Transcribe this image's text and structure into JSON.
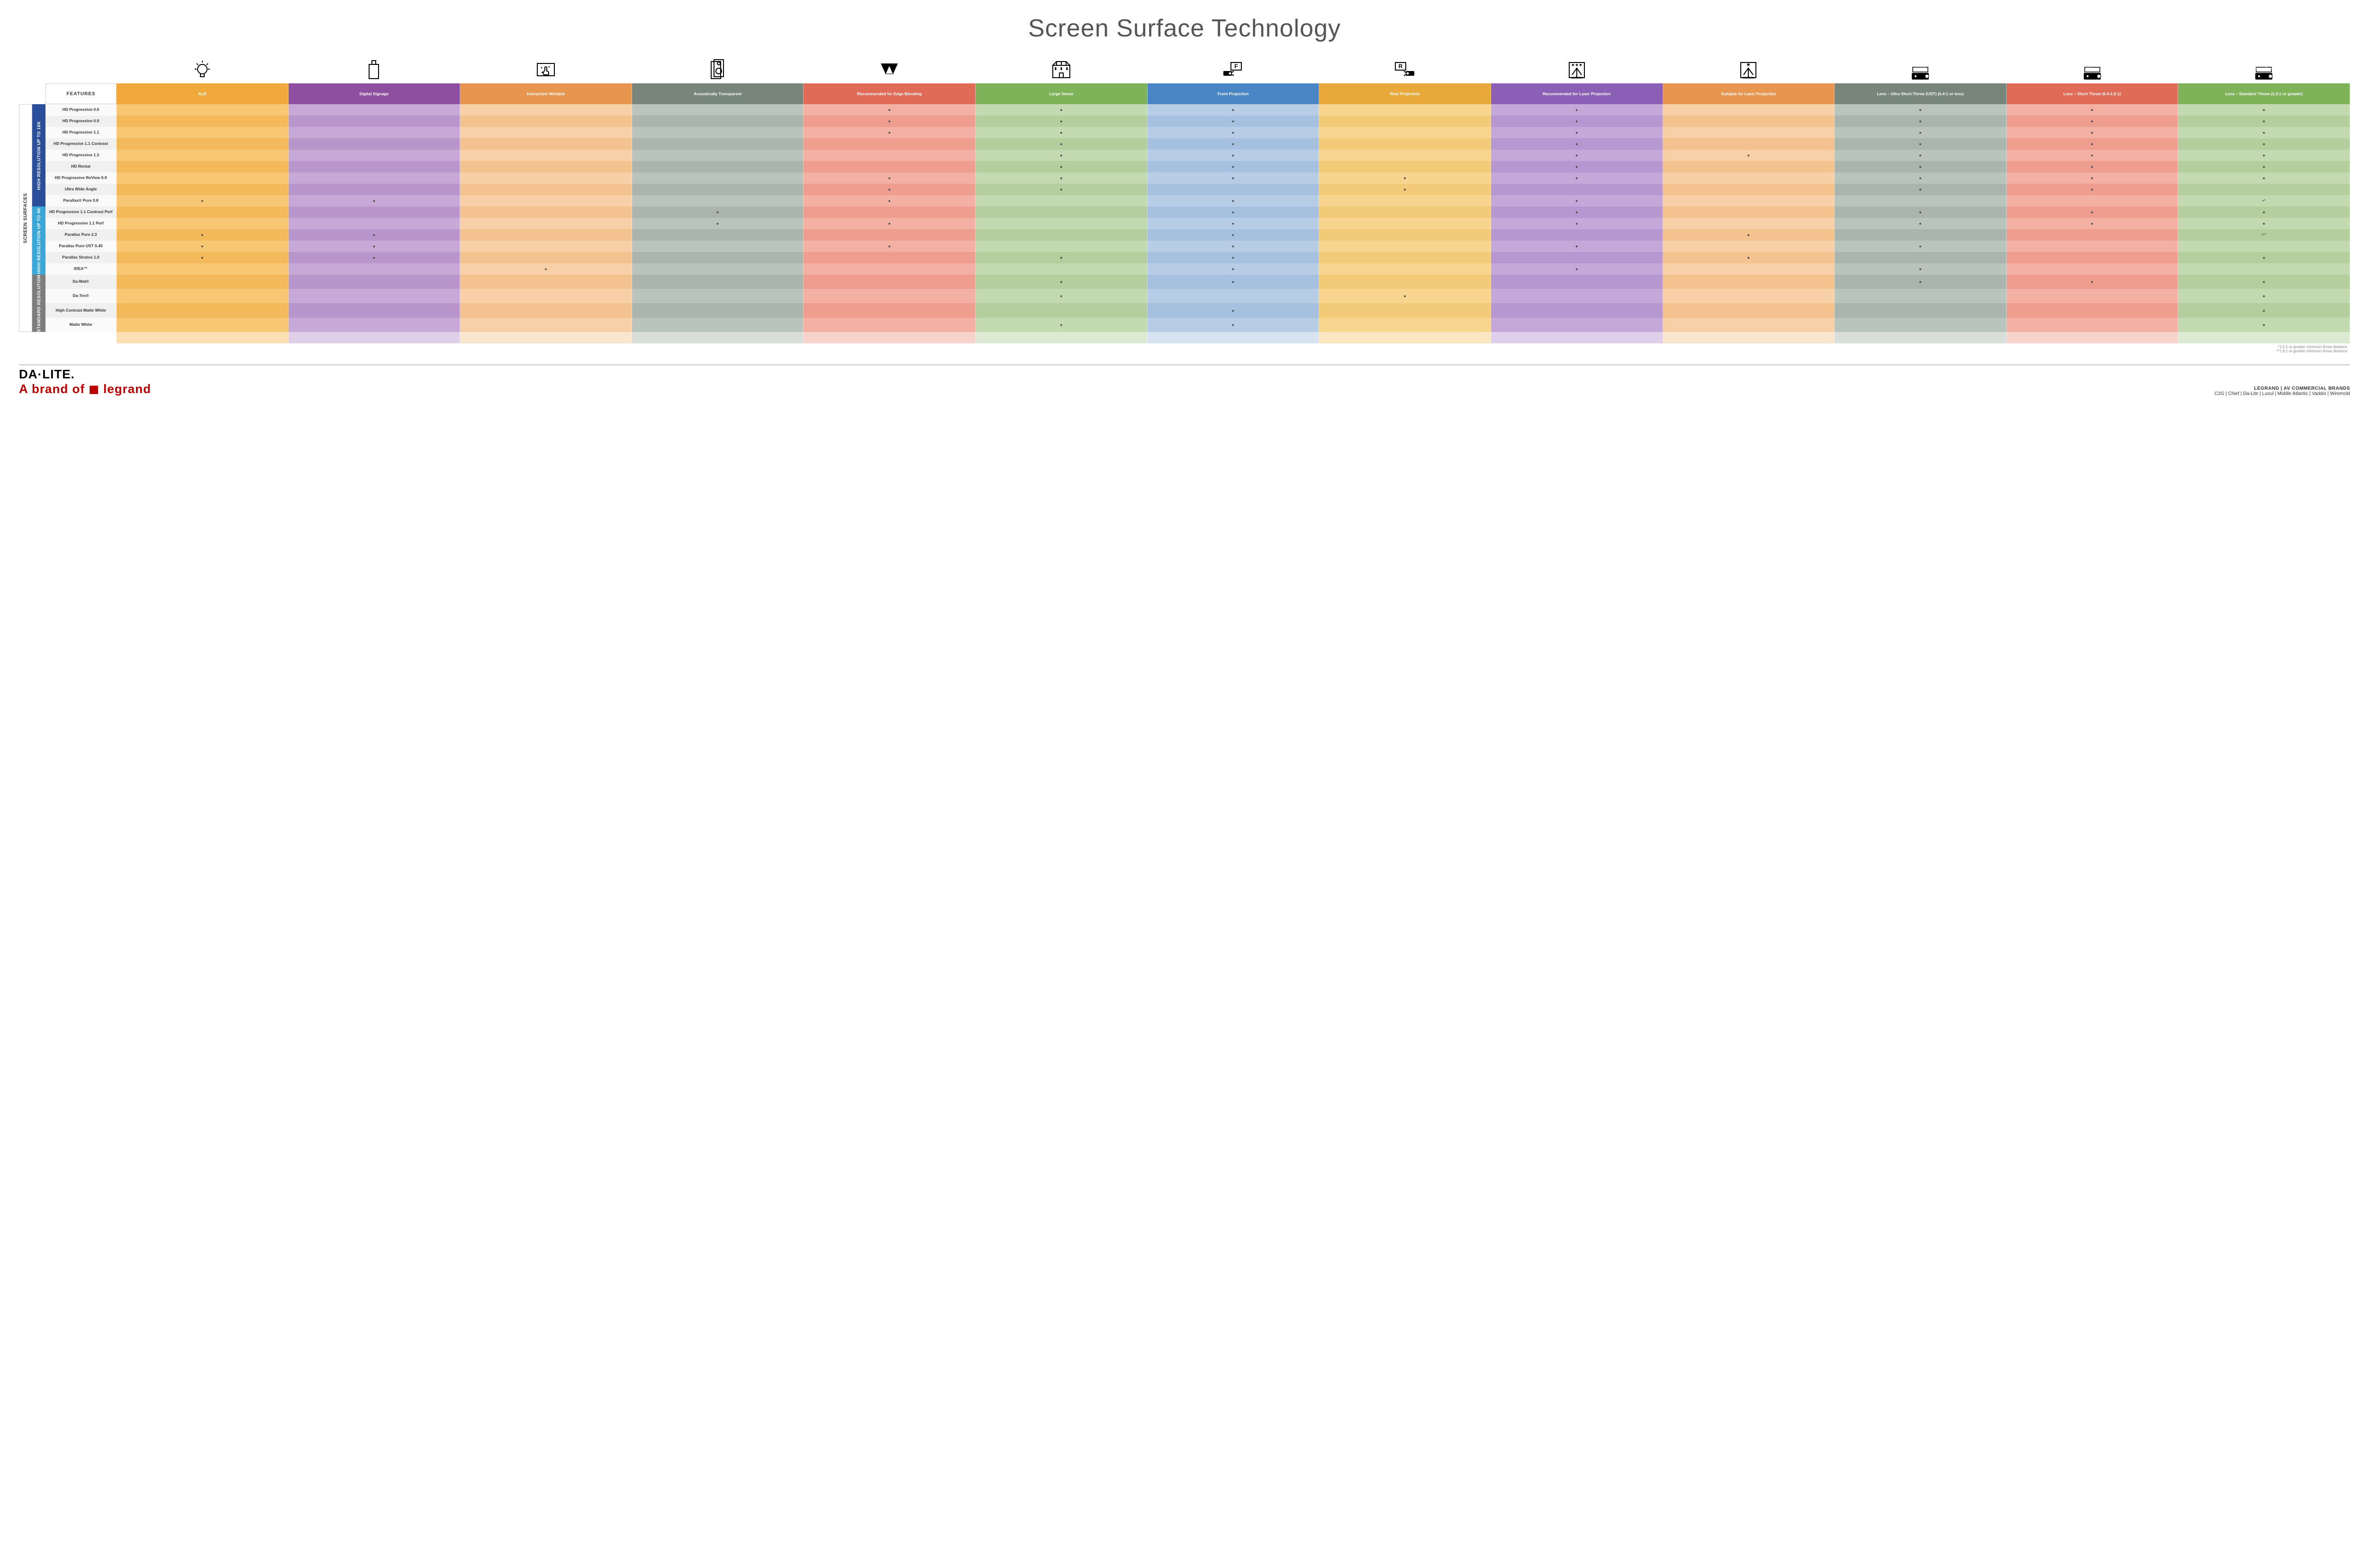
{
  "title": "Screen Surface Technology",
  "features_header": "FEATURES",
  "vertical_outer": "SCREEN SURFACES",
  "vgroups": [
    {
      "label": "HIGH RESOLUTION UP TO 16K",
      "color": "#2b4e9b",
      "span": 9
    },
    {
      "label": "HIGH RESOLUTION UP TO 4K",
      "color": "#3aa7d9",
      "span": 6
    },
    {
      "label": "STANDARD RESOLUTION",
      "color": "#7d7d7d",
      "span": 4
    }
  ],
  "columns": [
    {
      "label": "ALR",
      "a": "#f7c774",
      "b": "#f3b95a",
      "h": "#f0a93a",
      "icon": "bulb"
    },
    {
      "label": "Digital Signage",
      "a": "#c7a8d6",
      "b": "#b896cc",
      "h": "#8e4fa0",
      "icon": "signage"
    },
    {
      "label": "Interactive/ Writable",
      "a": "#f7d0a8",
      "b": "#f3c28f",
      "h": "#e89550",
      "icon": "touch"
    },
    {
      "label": "Acoustically Transparent",
      "a": "#b9c4bd",
      "b": "#a9b5ad",
      "h": "#77857b",
      "icon": "speaker"
    },
    {
      "label": "Recommended for Edge Blending",
      "a": "#f3b0a3",
      "b": "#ef9d8e",
      "h": "#e06b57",
      "icon": "blend"
    },
    {
      "label": "Large Venue",
      "a": "#c3d9b0",
      "b": "#b4cf9d",
      "h": "#7fb35a",
      "icon": "venue"
    },
    {
      "label": "Front Projection",
      "a": "#b7cde6",
      "b": "#a6c1df",
      "h": "#4a86c5",
      "icon": "front"
    },
    {
      "label": "Rear Projection",
      "a": "#f7d58f",
      "b": "#f3ca77",
      "h": "#e8a93a",
      "icon": "rear"
    },
    {
      "label": "Recommended for Laser Projection",
      "a": "#c5a8d9",
      "b": "#b697d0",
      "h": "#8b5fb5",
      "icon": "laser-rec"
    },
    {
      "label": "Suitable for Laser Projection",
      "a": "#f7d0a8",
      "b": "#f3c28f",
      "h": "#e89550",
      "icon": "laser-ok"
    },
    {
      "label": "Lens – Ultra Short Throw (UST) (0.4:1 or less)",
      "a": "#b9c4bd",
      "b": "#a9b5ad",
      "h": "#77857b",
      "icon": "ust"
    },
    {
      "label": "Lens – Short Throw (0.4-1.0:1)",
      "a": "#f3b0a3",
      "b": "#ef9d8e",
      "h": "#e06b57",
      "icon": "short"
    },
    {
      "label": "Lens – Standard Throw (1.0:1 or greater)",
      "a": "#c3d9b0",
      "b": "#b4cf9d",
      "h": "#7fb35a",
      "icon": "standard"
    }
  ],
  "rows": [
    {
      "label": "HD Progressive 0.6",
      "dots": [
        0,
        0,
        0,
        0,
        1,
        1,
        1,
        0,
        1,
        0,
        1,
        1,
        1
      ]
    },
    {
      "label": "HD Progressive 0.9",
      "dots": [
        0,
        0,
        0,
        0,
        1,
        1,
        1,
        0,
        1,
        0,
        1,
        1,
        1
      ]
    },
    {
      "label": "HD Progressive 1.1",
      "dots": [
        0,
        0,
        0,
        0,
        1,
        1,
        1,
        0,
        1,
        0,
        1,
        1,
        1
      ]
    },
    {
      "label": "HD Progressive 1.1 Contrast",
      "dots": [
        0,
        0,
        0,
        0,
        0,
        1,
        1,
        0,
        1,
        0,
        1,
        1,
        1
      ]
    },
    {
      "label": "HD Progressive 1.3",
      "dots": [
        0,
        0,
        0,
        0,
        0,
        1,
        1,
        0,
        1,
        1,
        1,
        1,
        1
      ]
    },
    {
      "label": "HD Rental",
      "dots": [
        0,
        0,
        0,
        0,
        0,
        1,
        1,
        0,
        1,
        0,
        1,
        1,
        1
      ]
    },
    {
      "label": "HD Progressive ReView 0.9",
      "dots": [
        0,
        0,
        0,
        0,
        1,
        1,
        1,
        1,
        1,
        0,
        1,
        1,
        1
      ]
    },
    {
      "label": "Ultra Wide Angle",
      "dots": [
        0,
        0,
        0,
        0,
        1,
        1,
        0,
        1,
        0,
        0,
        1,
        1,
        0
      ]
    },
    {
      "label": "Parallax® Pure 0.8",
      "dots": [
        1,
        1,
        0,
        0,
        1,
        0,
        1,
        0,
        1,
        0,
        0,
        0,
        "•*"
      ]
    },
    {
      "label": "HD Progressive 1.1 Contrast Perf",
      "dots": [
        0,
        0,
        0,
        1,
        0,
        0,
        1,
        0,
        1,
        0,
        1,
        1,
        1
      ]
    },
    {
      "label": "HD Progressive 1.1 Perf",
      "dots": [
        0,
        0,
        0,
        1,
        1,
        0,
        1,
        0,
        1,
        0,
        1,
        1,
        1
      ]
    },
    {
      "label": "Parallax Pure 2.3",
      "dots": [
        1,
        1,
        0,
        0,
        0,
        0,
        1,
        0,
        0,
        1,
        0,
        0,
        "•**"
      ]
    },
    {
      "label": "Parallax Pure UST 0.45",
      "dots": [
        1,
        1,
        0,
        0,
        1,
        0,
        1,
        0,
        1,
        0,
        1,
        0,
        0
      ]
    },
    {
      "label": "Parallax Stratos 1.0",
      "dots": [
        1,
        1,
        0,
        0,
        0,
        1,
        1,
        0,
        0,
        1,
        0,
        0,
        1
      ]
    },
    {
      "label": "IDEA™",
      "dots": [
        0,
        0,
        1,
        0,
        0,
        0,
        1,
        0,
        1,
        0,
        1,
        0,
        0
      ]
    },
    {
      "label": "Da-Mat®",
      "dots": [
        0,
        0,
        0,
        0,
        0,
        1,
        1,
        0,
        0,
        0,
        1,
        1,
        1
      ]
    },
    {
      "label": "Da-Tex®",
      "dots": [
        0,
        0,
        0,
        0,
        0,
        1,
        0,
        1,
        0,
        0,
        0,
        0,
        1
      ]
    },
    {
      "label": "High Contrast Matte White",
      "dots": [
        0,
        0,
        0,
        0,
        0,
        0,
        1,
        0,
        0,
        0,
        0,
        0,
        1
      ]
    },
    {
      "label": "Matte White",
      "dots": [
        0,
        0,
        0,
        0,
        0,
        1,
        1,
        0,
        0,
        0,
        0,
        0,
        1
      ]
    }
  ],
  "rowlabel_colors": {
    "a": "#fafafa",
    "b": "#f0f0f0"
  },
  "notes": [
    "*1.5:1 or greater minimum throw distance",
    "**1.8:1 or greater minimum throw distance"
  ],
  "footer": {
    "logo": "DA·LITE.",
    "logo_sub": "A brand of ◼ legrand",
    "brands_title": "LEGRAND | AV COMMERCIAL BRANDS",
    "brands_list": "C2G  |  Chief  |  Da-Lite  |  Luxul  |  Middle Atlantic  |  Vaddio  |  Wiremold"
  }
}
